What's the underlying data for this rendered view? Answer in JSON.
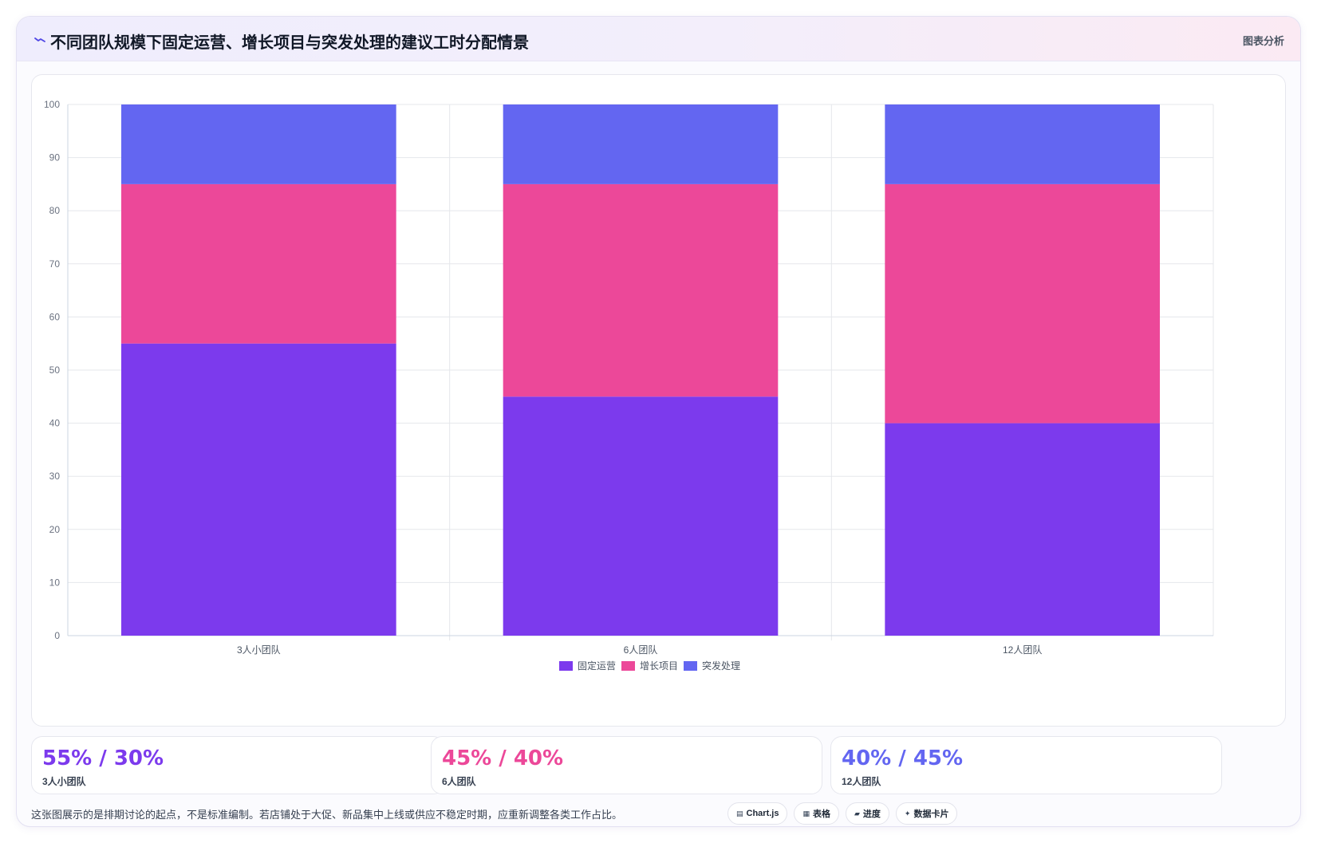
{
  "header": {
    "title": "不同团队规模下固定运营、增长项目与突发处理的建议工时分配情景",
    "tag": "图表分析",
    "icon": "trend-line-icon"
  },
  "chart_data": {
    "type": "bar",
    "stacked": true,
    "categories": [
      "3人小团队",
      "6人团队",
      "12人团队"
    ],
    "series": [
      {
        "name": "固定运营",
        "values": [
          55,
          45,
          40
        ],
        "color": "#7c3aed"
      },
      {
        "name": "增长项目",
        "values": [
          30,
          40,
          45
        ],
        "color": "#ec4899"
      },
      {
        "name": "突发处理",
        "values": [
          15,
          15,
          15
        ],
        "color": "#6366f1"
      }
    ],
    "ylim": [
      0,
      100
    ],
    "yticks": [
      0,
      10,
      20,
      30,
      40,
      50,
      60,
      70,
      80,
      90,
      100
    ],
    "grid": true,
    "legend_position": "bottom"
  },
  "stats": [
    {
      "value": "55% / 30%",
      "label": "3人小团队",
      "color": "#7c3aed"
    },
    {
      "value": "45% / 40%",
      "label": "6人团队",
      "color": "#ec4899"
    },
    {
      "value": "40% / 45%",
      "label": "12人团队",
      "color": "#6366f1"
    }
  ],
  "footer": {
    "note": "这张图展示的是排期讨论的起点，不是标准编制。若店铺处于大促、新品集中上线或供应不稳定时期，应重新调整各类工作占比。"
  },
  "chips": [
    {
      "label": "Chart.js",
      "icon": "▤"
    },
    {
      "label": "表格",
      "icon": "▦"
    },
    {
      "label": "进度",
      "icon": "▰"
    },
    {
      "label": "数据卡片",
      "icon": "✦"
    }
  ]
}
